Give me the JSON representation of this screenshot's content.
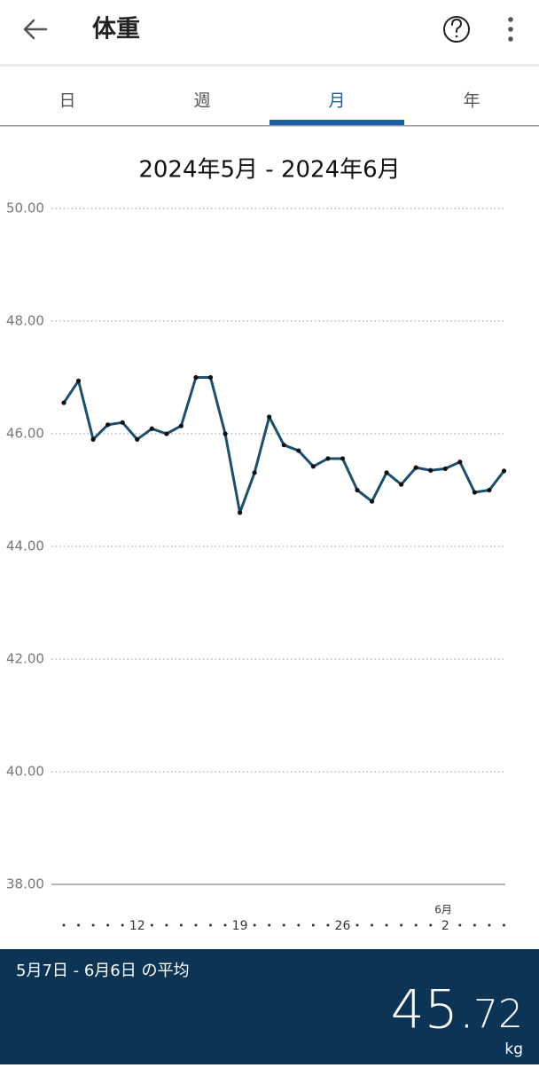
{
  "header": {
    "title": "体重"
  },
  "tabs": {
    "items": [
      "日",
      "週",
      "月",
      "年"
    ],
    "active": 2,
    "active_color": "#1a5fa8"
  },
  "chart_data": {
    "type": "line",
    "title": "2024年5月 - 2024年6月",
    "categories": [
      null,
      null,
      null,
      null,
      null,
      "12",
      null,
      null,
      null,
      null,
      null,
      null,
      "19",
      null,
      null,
      null,
      null,
      null,
      null,
      "26",
      null,
      null,
      null,
      null,
      null,
      null,
      "2",
      null,
      null,
      null,
      null
    ],
    "category_months": [
      null,
      null,
      null,
      null,
      null,
      null,
      null,
      null,
      null,
      null,
      null,
      null,
      null,
      null,
      null,
      null,
      null,
      null,
      null,
      null,
      null,
      null,
      null,
      null,
      null,
      null,
      "6月",
      null,
      null,
      null,
      null
    ],
    "series": [
      {
        "color": "#1c4e6e",
        "values": [
          46.55,
          46.94,
          45.9,
          46.16,
          46.2,
          45.9,
          46.09,
          46.0,
          46.14,
          47.0,
          47.0,
          46.0,
          44.6,
          45.31,
          46.3,
          45.8,
          45.7,
          45.42,
          45.56,
          45.56,
          45.0,
          44.8,
          45.31,
          45.1,
          45.4,
          45.35,
          45.38,
          45.5,
          44.96,
          45.0,
          45.34
        ]
      }
    ],
    "ylim": [
      38,
      50
    ],
    "yticks": [
      {
        "value": 38,
        "label": "38.00"
      },
      {
        "value": 40,
        "label": "40.00"
      },
      {
        "value": 42,
        "label": "42.00"
      },
      {
        "value": 44,
        "label": "44.00"
      },
      {
        "value": 46,
        "label": "46.00"
      },
      {
        "value": 48,
        "label": "48.00"
      },
      {
        "value": 50,
        "label": "50.00"
      }
    ],
    "grid": true
  },
  "summary": {
    "label": "5月7日 - 6月6日 の平均",
    "whole": "45.",
    "fraction": "72",
    "unit": "kg"
  }
}
